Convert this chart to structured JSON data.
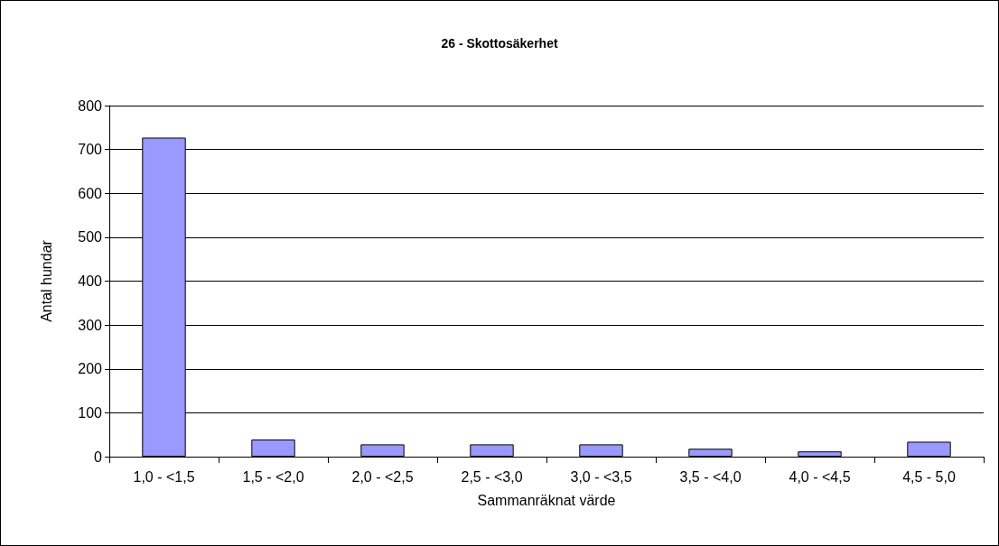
{
  "chart_data": {
    "type": "bar",
    "title": "26 - Skottosäkerhet",
    "xlabel": "Sammanräknat värde",
    "ylabel": "Antal hundar",
    "categories": [
      "1,0 - <1,5",
      "1,5 - <2,0",
      "2,0 - <2,5",
      "2,5 - <3,0",
      "3,0 - <3,5",
      "3,5 - <4,0",
      "4,0 - <4,5",
      "4,5 - 5,0"
    ],
    "values": [
      727,
      39,
      28,
      28,
      28,
      18,
      12,
      34
    ],
    "color": "#9999ff",
    "ylim": [
      0,
      800
    ],
    "yticks": [
      0,
      100,
      200,
      300,
      400,
      500,
      600,
      700,
      800
    ],
    "grid": "y"
  }
}
